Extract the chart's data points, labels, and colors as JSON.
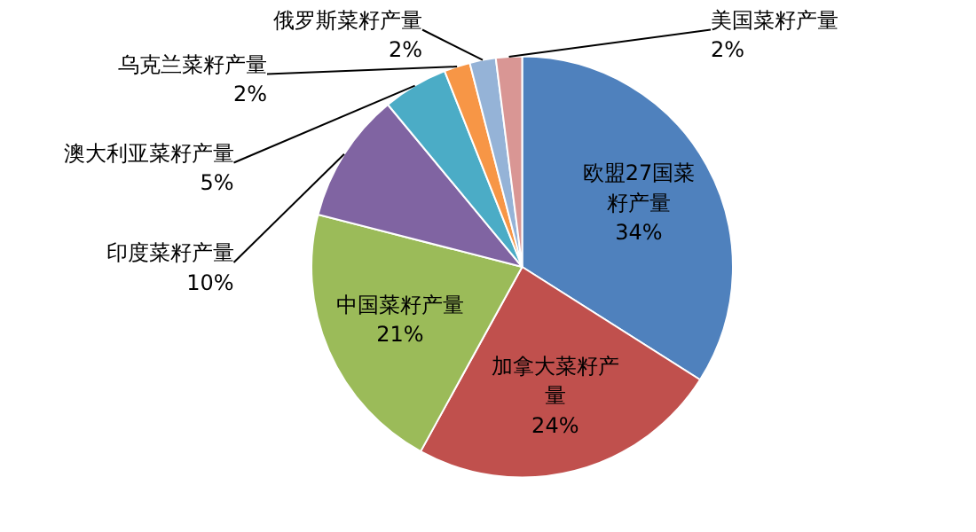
{
  "chart_data": {
    "type": "pie",
    "categories": [
      "欧盟27国菜籽产量",
      "加拿大菜籽产量",
      "中国菜籽产量",
      "印度菜籽产量",
      "澳大利亚菜籽产量",
      "乌克兰菜籽产量",
      "俄罗斯菜籽产量",
      "美国菜籽产量"
    ],
    "values": [
      34,
      24,
      21,
      10,
      5,
      2,
      2,
      2
    ],
    "value_labels": [
      "34%",
      "24%",
      "21%",
      "10%",
      "5%",
      "2%",
      "2%",
      "2%"
    ],
    "colors": [
      "#4f81bd",
      "#c0504d",
      "#9bbb59",
      "#8064a2",
      "#4bacc6",
      "#f79646",
      "#95b3d7",
      "#d99694"
    ]
  }
}
